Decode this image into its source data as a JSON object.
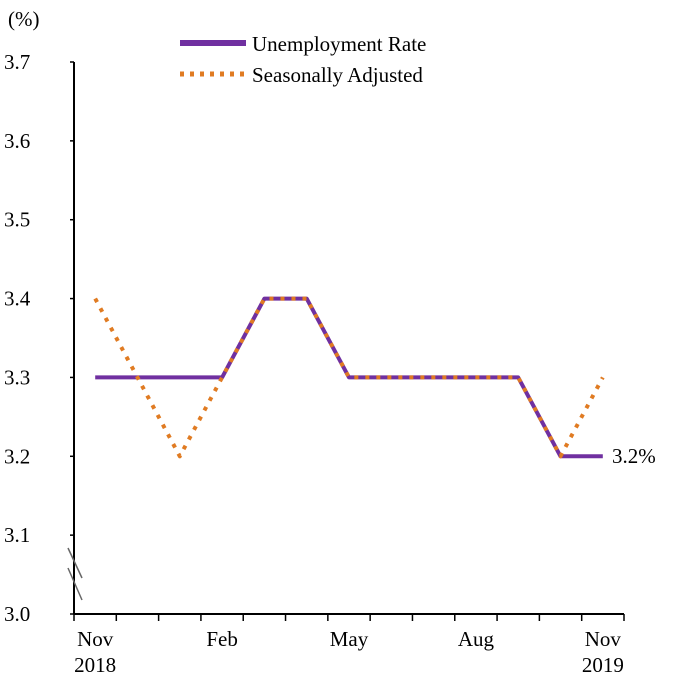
{
  "chart_data": {
    "type": "line",
    "title": "",
    "unit_label": "(%)",
    "ylim": [
      3.0,
      3.7
    ],
    "y_ticks": [
      "3.0",
      "3.1",
      "3.2",
      "3.3",
      "3.4",
      "3.5",
      "3.6",
      "3.7"
    ],
    "x": [
      "Nov 2018",
      "Dec 2018",
      "Jan 2019",
      "Feb 2019",
      "Mar 2019",
      "Apr 2019",
      "May 2019",
      "Jun 2019",
      "Jul 2019",
      "Aug 2019",
      "Sep 2019",
      "Oct 2019",
      "Nov 2019"
    ],
    "x_tick_labels": [
      {
        "month": "Nov",
        "year": "2018"
      },
      {
        "month": "Feb",
        "year": ""
      },
      {
        "month": "May",
        "year": ""
      },
      {
        "month": "Aug",
        "year": ""
      },
      {
        "month": "Nov",
        "year": "2019"
      }
    ],
    "series": [
      {
        "name": "Unemployment Rate",
        "style": "solid",
        "color": "#7030A0",
        "values": [
          3.3,
          3.3,
          3.3,
          3.3,
          3.4,
          3.4,
          3.3,
          3.3,
          3.3,
          3.3,
          3.3,
          3.2,
          3.2
        ]
      },
      {
        "name": "Seasonally Adjusted",
        "style": "dotted",
        "color": "#E07B22",
        "values": [
          3.4,
          3.3,
          3.2,
          3.3,
          3.4,
          3.4,
          3.3,
          3.3,
          3.3,
          3.3,
          3.3,
          3.2,
          3.3
        ]
      }
    ],
    "annotation": "3.2%",
    "axis_break": true,
    "grid": false,
    "legend_position": "top"
  }
}
